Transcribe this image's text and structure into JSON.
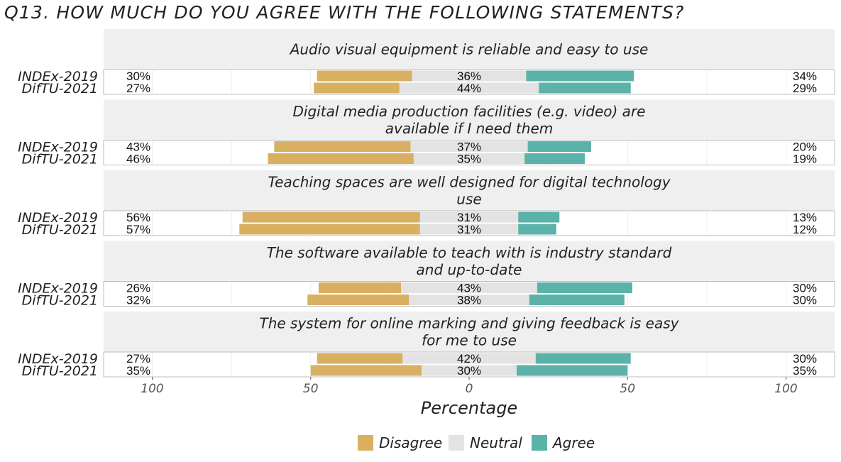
{
  "chart_data": {
    "type": "bar",
    "title": "Q13. HOW MUCH DO YOU AGREE WITH THE FOLLOWING STATEMENTS?",
    "xlabel": "Percentage",
    "xlim": [
      -100,
      100
    ],
    "x_ticks": [
      -100,
      -50,
      0,
      50,
      100
    ],
    "x_tick_labels": [
      "100",
      "50",
      "0",
      "50",
      "100"
    ],
    "grid": true,
    "legend_position": "bottom",
    "categories": [
      "INDEx-2019",
      "DifTU-2021"
    ],
    "series_names": [
      "Disagree",
      "Neutral",
      "Agree"
    ],
    "colors": {
      "Disagree": "#d9b061",
      "Neutral": "#e3e3e3",
      "Agree": "#5bb2a8"
    },
    "panels": [
      {
        "title_lines": [
          "Audio visual equipment is reliable and easy to use"
        ],
        "rows": [
          {
            "group": "INDEx-2019",
            "disagree": 30,
            "neutral": 36,
            "agree": 34,
            "disagree_label": "30%",
            "neutral_label": "36%",
            "agree_label": "34%"
          },
          {
            "group": "DifTU-2021",
            "disagree": 27,
            "neutral": 44,
            "agree": 29,
            "disagree_label": "27%",
            "neutral_label": "44%",
            "agree_label": "29%"
          }
        ]
      },
      {
        "title_lines": [
          "Digital media production facilities (e.g. video) are",
          "available if I need them"
        ],
        "rows": [
          {
            "group": "INDEx-2019",
            "disagree": 43,
            "neutral": 37,
            "agree": 20,
            "disagree_label": "43%",
            "neutral_label": "37%",
            "agree_label": "20%"
          },
          {
            "group": "DifTU-2021",
            "disagree": 46,
            "neutral": 35,
            "agree": 19,
            "disagree_label": "46%",
            "neutral_label": "35%",
            "agree_label": "19%"
          }
        ]
      },
      {
        "title_lines": [
          "Teaching spaces are well designed for digital technology",
          "use"
        ],
        "rows": [
          {
            "group": "INDEx-2019",
            "disagree": 56,
            "neutral": 31,
            "agree": 13,
            "disagree_label": "56%",
            "neutral_label": "31%",
            "agree_label": "13%"
          },
          {
            "group": "DifTU-2021",
            "disagree": 57,
            "neutral": 31,
            "agree": 12,
            "disagree_label": "57%",
            "neutral_label": "31%",
            "agree_label": "12%"
          }
        ]
      },
      {
        "title_lines": [
          "The software available to teach with is industry standard",
          "and up-to-date"
        ],
        "rows": [
          {
            "group": "INDEx-2019",
            "disagree": 26,
            "neutral": 43,
            "agree": 30,
            "disagree_label": "26%",
            "neutral_label": "43%",
            "agree_label": "30%"
          },
          {
            "group": "DifTU-2021",
            "disagree": 32,
            "neutral": 38,
            "agree": 30,
            "disagree_label": "32%",
            "neutral_label": "38%",
            "agree_label": "30%"
          }
        ]
      },
      {
        "title_lines": [
          "The system for online marking and giving feedback is easy",
          "for me to use"
        ],
        "rows": [
          {
            "group": "INDEx-2019",
            "disagree": 27,
            "neutral": 42,
            "agree": 30,
            "disagree_label": "27%",
            "neutral_label": "42%",
            "agree_label": "30%"
          },
          {
            "group": "DifTU-2021",
            "disagree": 35,
            "neutral": 30,
            "agree": 35,
            "disagree_label": "35%",
            "neutral_label": "30%",
            "agree_label": "35%"
          }
        ]
      }
    ]
  }
}
